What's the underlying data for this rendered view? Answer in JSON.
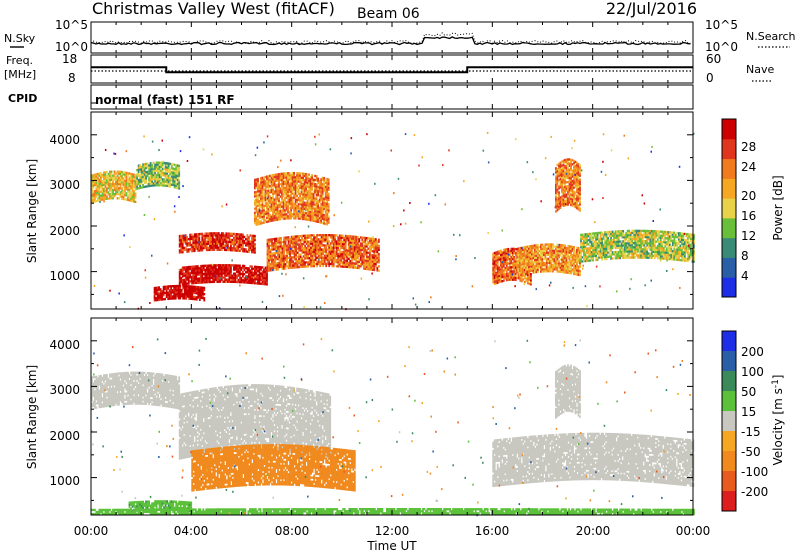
{
  "header": {
    "station": "Christmas Valley West (fitACF)",
    "beam": "Beam 06",
    "date": "22/Jul/2016"
  },
  "summary": {
    "nsky_label": "N.Sky",
    "nsky_ticks": [
      "10^5",
      "10^0"
    ],
    "nsearch_label": "N.Search",
    "nsearch_ticks": [
      "10^5",
      "10^0"
    ],
    "freq_label_1": "Freq.",
    "freq_label_2": "[MHz]",
    "freq_ticks": [
      "18",
      "8"
    ],
    "nave_label": "Nave",
    "nave_ticks": [
      "60",
      "0"
    ],
    "cpid_label": "CPID",
    "cpid_text": "normal (fast) 151 RF",
    "freq_mhz_segments": [
      {
        "from_hour": 0,
        "to_hour": 3,
        "value": 13.6
      },
      {
        "from_hour": 3,
        "to_hour": 15,
        "value": 11.2
      },
      {
        "from_hour": 15,
        "to_hour": 24,
        "value": 13.6
      }
    ]
  },
  "x_axis": {
    "label": "Time UT",
    "ticks": [
      "00:00",
      "04:00",
      "08:00",
      "12:00",
      "16:00",
      "20:00",
      "00:00"
    ],
    "range_hours": [
      0,
      24
    ]
  },
  "y_axis": {
    "label": "Slant Range [km]",
    "ticks": [
      "1000",
      "2000",
      "3000",
      "4000"
    ],
    "range_km": [
      180,
      4500
    ]
  },
  "power_colorbar": {
    "label": "Power [dB]",
    "ticks": [
      "4",
      "8",
      "12",
      "16",
      "20",
      "24",
      "28"
    ],
    "colors": [
      "#1e2ee6",
      "#2a5fa8",
      "#3a8a78",
      "#6abf3a",
      "#e8d24a",
      "#f5a623",
      "#f07a1e",
      "#e0361e",
      "#cc0000"
    ]
  },
  "velocity_colorbar": {
    "label": "Velocity [m s",
    "label_sup": "-1",
    "label_close": "]",
    "ticks": [
      "200",
      "100",
      "50",
      "15",
      "-15",
      "-50",
      "-100",
      "-200"
    ],
    "colors": [
      "#1e2ee6",
      "#2a5fa8",
      "#3a8a5a",
      "#5cc13a",
      "#c8c8c0",
      "#f5a623",
      "#f08a1e",
      "#e85a1e",
      "#dd1e1e"
    ]
  },
  "chart_data": {
    "type": "heatmap",
    "title": "Christmas Valley West (fitACF)",
    "panels": [
      {
        "quantity": "Power [dB]",
        "regions": [
          {
            "t0": 0.0,
            "t1": 1.8,
            "r0": 2500,
            "r1": 3100,
            "level": 0.55
          },
          {
            "t0": 1.8,
            "t1": 3.5,
            "r0": 2800,
            "r1": 3300,
            "level": 0.4
          },
          {
            "t0": 3.5,
            "t1": 6.5,
            "r0": 1400,
            "r1": 1800,
            "level": 0.85
          },
          {
            "t0": 6.5,
            "t1": 9.5,
            "r0": 2000,
            "r1": 3000,
            "level": 0.7
          },
          {
            "t0": 3.5,
            "t1": 7.0,
            "r0": 700,
            "r1": 1100,
            "level": 0.95
          },
          {
            "t0": 7.0,
            "t1": 11.5,
            "r0": 1000,
            "r1": 1700,
            "level": 0.75
          },
          {
            "t0": 2.5,
            "t1": 4.5,
            "r0": 350,
            "r1": 650,
            "level": 1.0
          },
          {
            "t0": 16.0,
            "t1": 17.5,
            "r0": 700,
            "r1": 1400,
            "level": 0.75
          },
          {
            "t0": 17.0,
            "t1": 19.5,
            "r0": 900,
            "r1": 1500,
            "level": 0.65
          },
          {
            "t0": 19.5,
            "t1": 24.0,
            "r0": 1200,
            "r1": 1800,
            "level": 0.45
          },
          {
            "t0": 18.5,
            "t1": 19.5,
            "r0": 2300,
            "r1": 3300,
            "level": 0.7
          }
        ]
      },
      {
        "quantity": "Velocity [m s-1]",
        "regions": [
          {
            "t0": 0.0,
            "t1": 3.5,
            "r0": 2500,
            "r1": 3200,
            "vel": 0
          },
          {
            "t0": 3.5,
            "t1": 9.5,
            "r0": 1400,
            "r1": 2800,
            "vel": 0
          },
          {
            "t0": 4.0,
            "t1": 10.5,
            "r0": 700,
            "r1": 1600,
            "vel": -70
          },
          {
            "t0": 1.5,
            "t1": 4.0,
            "r0": 250,
            "r1": 450,
            "vel": 40
          },
          {
            "t0": 16.0,
            "t1": 24.0,
            "r0": 800,
            "r1": 1800,
            "vel": 0
          },
          {
            "t0": 18.5,
            "t1": 19.5,
            "r0": 2300,
            "r1": 3300,
            "vel": 0
          },
          {
            "t0": 0.0,
            "t1": 24.0,
            "r0": 180,
            "r1": 300,
            "vel": 30
          }
        ]
      }
    ]
  }
}
